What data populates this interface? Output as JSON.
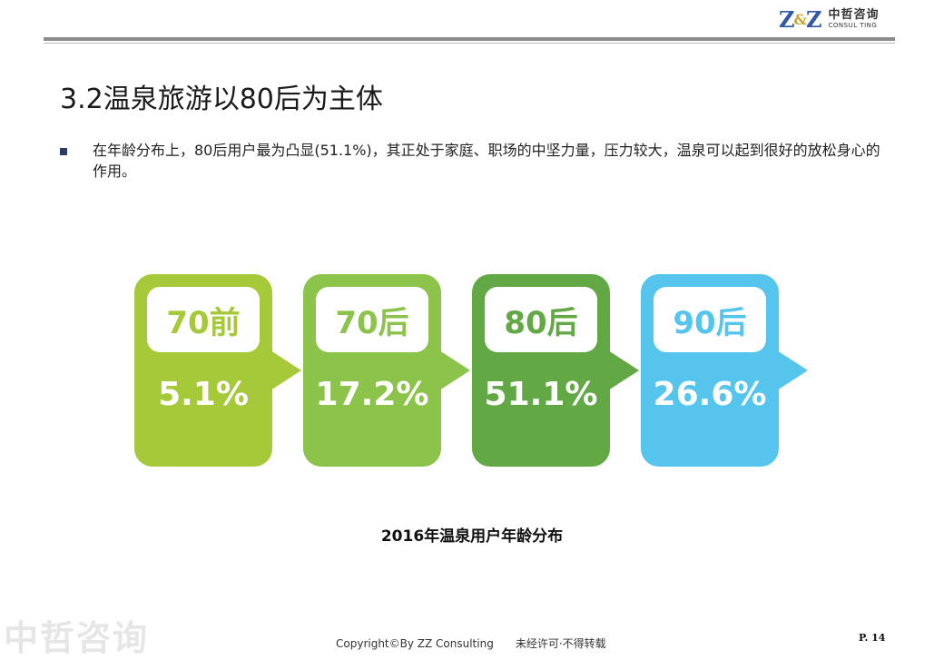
{
  "header": {
    "logo_mark_left": "Z",
    "logo_mark_amp": "&",
    "logo_mark_right": "Z",
    "logo_cn": "中哲咨询",
    "logo_en": "CONSUL TING"
  },
  "slide": {
    "title": "3.2温泉旅游以80后为主体",
    "bullet": "在年龄分布上，80后用户最为凸显(51.1%)，其正处于家庭、职场的中坚力量，压力较大，温泉可以起到很好的放松身心的作用。"
  },
  "chart_data": {
    "type": "bar",
    "title": "2016年温泉用户年龄分布",
    "categories": [
      "70前",
      "70后",
      "80后",
      "90后"
    ],
    "values": [
      5.1,
      17.2,
      51.1,
      26.6
    ],
    "labels": [
      "5.1%",
      "17.2%",
      "51.1%",
      "26.6%"
    ],
    "colors": [
      "#a6c93a",
      "#8cc34a",
      "#62a844",
      "#55c5ee"
    ]
  },
  "footer": {
    "watermark": "中哲咨询",
    "copyright": "Copyright©By  ZZ Consulting",
    "notice": "未经许可·不得转载",
    "page_no": "P. 14"
  }
}
